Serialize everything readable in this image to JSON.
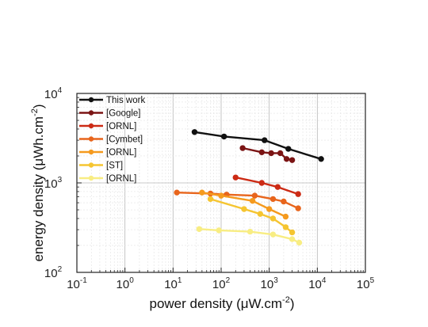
{
  "chart_data": {
    "type": "line",
    "xlabel_main": "power density (μW.cm",
    "xlabel_sup": "-2",
    "xlabel_tail": ")",
    "ylabel_main": "energy density (μWh.cm",
    "ylabel_sup": "-2",
    "ylabel_tail": ")",
    "xscale": "log",
    "yscale": "log",
    "xlim": [
      0.1,
      100000
    ],
    "ylim": [
      100,
      10000
    ],
    "grid": true,
    "legend_position": "top-left",
    "x_ticks": [
      {
        "base": "10",
        "exp": "-1",
        "value": 0.1
      },
      {
        "base": "10",
        "exp": "0",
        "value": 1
      },
      {
        "base": "10",
        "exp": "1",
        "value": 10
      },
      {
        "base": "10",
        "exp": "2",
        "value": 100
      },
      {
        "base": "10",
        "exp": "3",
        "value": 1000
      },
      {
        "base": "10",
        "exp": "4",
        "value": 10000
      },
      {
        "base": "10",
        "exp": "5",
        "value": 100000
      }
    ],
    "y_ticks": [
      {
        "base": "10",
        "exp": "2",
        "value": 100
      },
      {
        "base": "10",
        "exp": "3",
        "value": 1000
      },
      {
        "base": "10",
        "exp": "4",
        "value": 10000
      }
    ],
    "series": [
      {
        "name": "This work",
        "color": "#111111",
        "points": [
          [
            28,
            3700
          ],
          [
            115,
            3300
          ],
          [
            800,
            3000
          ],
          [
            2500,
            2400
          ],
          [
            12000,
            1850
          ]
        ]
      },
      {
        "name": "[Google]",
        "color": "#7b1414",
        "points": [
          [
            280,
            2450
          ],
          [
            700,
            2200
          ],
          [
            1100,
            2150
          ],
          [
            1700,
            2150
          ],
          [
            2300,
            1850
          ],
          [
            3000,
            1800
          ]
        ]
      },
      {
        "name": "[ORNL]",
        "color": "#cc2a14",
        "points": [
          [
            200,
            1150
          ],
          [
            700,
            1000
          ],
          [
            1500,
            900
          ],
          [
            4000,
            750
          ]
        ]
      },
      {
        "name": "[Cymbet]",
        "color": "#e8651c",
        "points": [
          [
            12,
            780
          ],
          [
            60,
            760
          ],
          [
            130,
            740
          ],
          [
            500,
            720
          ],
          [
            1200,
            660
          ],
          [
            2000,
            620
          ],
          [
            4000,
            520
          ]
        ]
      },
      {
        "name": "[ORNL]",
        "color": "#f59a1e",
        "points": [
          [
            40,
            780
          ],
          [
            100,
            720
          ],
          [
            450,
            630
          ],
          [
            1000,
            510
          ],
          [
            2200,
            420
          ]
        ]
      },
      {
        "name": "[ST]",
        "color": "#f5c531",
        "points": [
          [
            60,
            660
          ],
          [
            300,
            510
          ],
          [
            650,
            450
          ],
          [
            1200,
            400
          ],
          [
            2200,
            320
          ],
          [
            3000,
            280
          ]
        ]
      },
      {
        "name": "[ORNL]",
        "color": "#f8ed83",
        "points": [
          [
            35,
            305
          ],
          [
            90,
            295
          ],
          [
            400,
            285
          ],
          [
            1200,
            265
          ],
          [
            3000,
            235
          ],
          [
            4200,
            215
          ]
        ]
      }
    ]
  }
}
